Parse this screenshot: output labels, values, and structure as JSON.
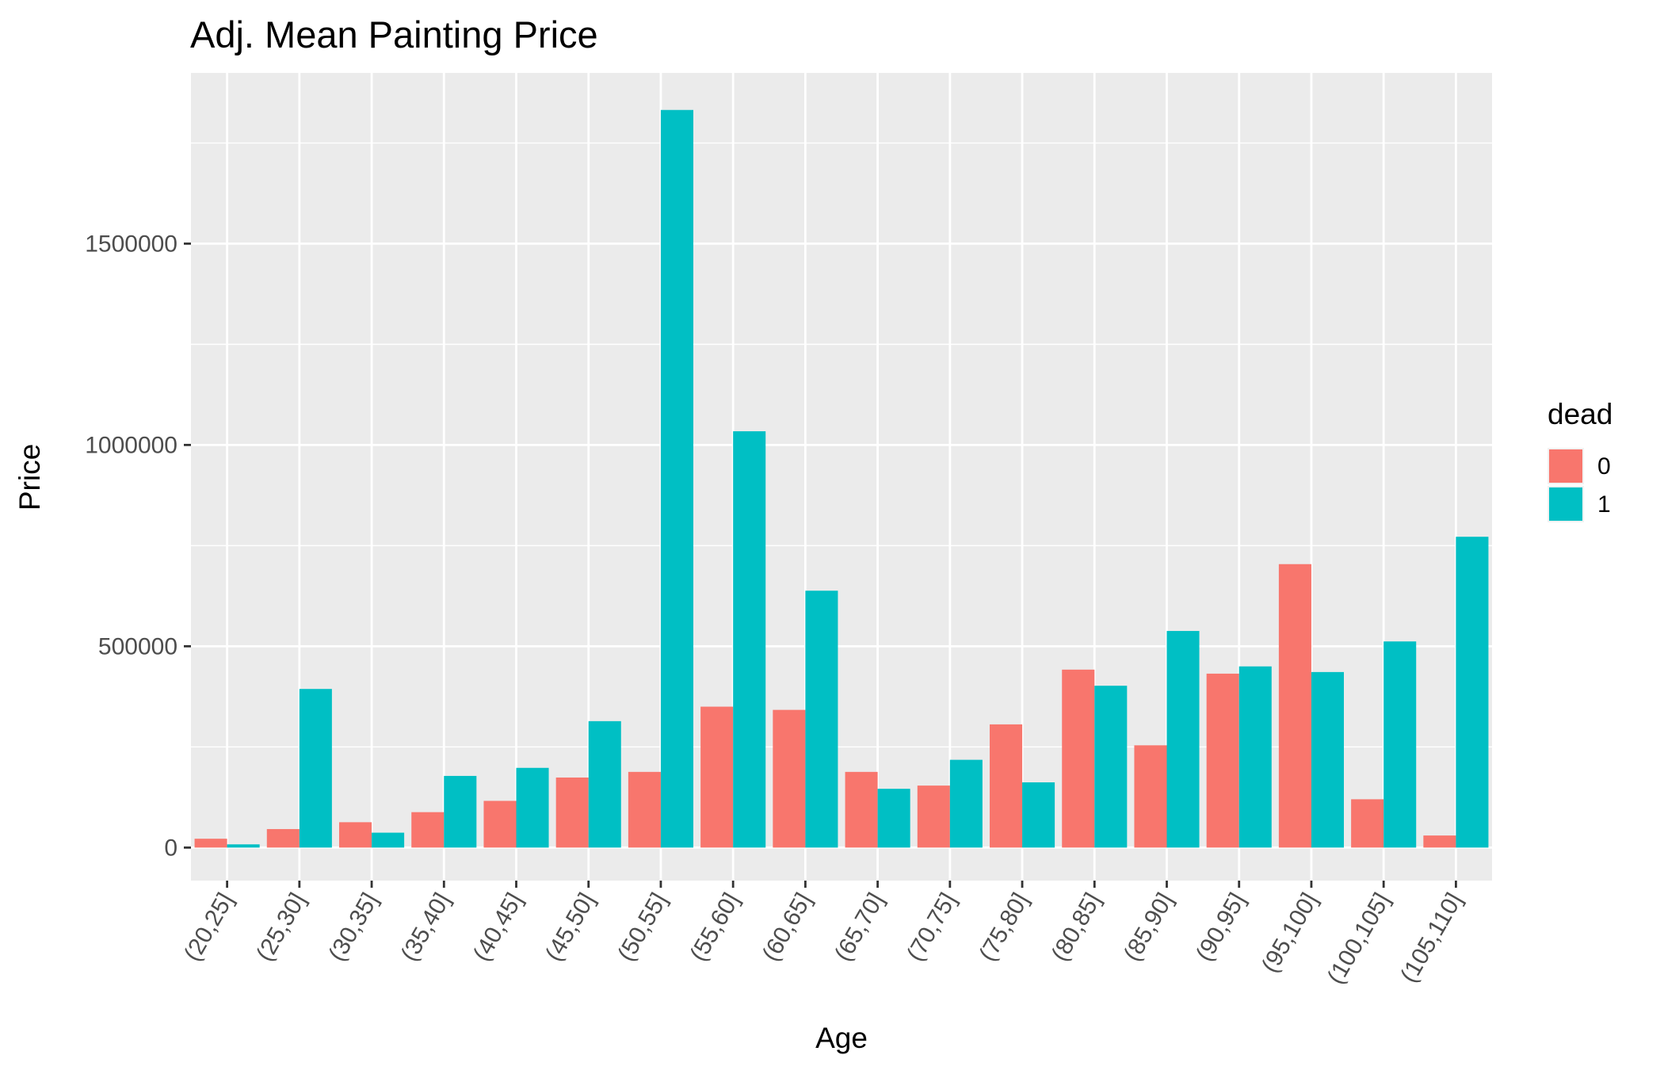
{
  "chart_data": {
    "type": "bar",
    "title": "Adj. Mean Painting Price",
    "xlabel": "Age",
    "ylabel": "Price",
    "categories": [
      "(20,25]",
      "(25,30]",
      "(30,35]",
      "(35,40]",
      "(40,45]",
      "(45,50]",
      "(50,55]",
      "(55,60]",
      "(60,65]",
      "(65,70]",
      "(70,75]",
      "(75,80]",
      "(80,85]",
      "(85,90]",
      "(90,95]",
      "(95,100]",
      "(100,105]",
      "(105,110]"
    ],
    "series": [
      {
        "name": "0",
        "color": "#F8766D",
        "values": [
          22000,
          46000,
          63000,
          88000,
          116000,
          174000,
          188000,
          350000,
          342000,
          188000,
          154000,
          306000,
          442000,
          254000,
          432000,
          704000,
          120000,
          30000
        ]
      },
      {
        "name": "1",
        "color": "#00BFC4",
        "values": [
          8000,
          394000,
          37000,
          178000,
          198000,
          314000,
          1832000,
          1034000,
          638000,
          146000,
          218000,
          162000,
          402000,
          538000,
          450000,
          436000,
          512000,
          772000
        ]
      }
    ],
    "yticks": [
      0,
      500000,
      1000000,
      1500000
    ],
    "ytick_labels": [
      "0",
      "500000",
      "1000000",
      "1500000"
    ],
    "ylim": [
      -82000,
      1924000
    ],
    "grid": true,
    "legend": {
      "title": "dead",
      "position": "right"
    },
    "panel_background": "#EBEBEB",
    "grid_color": "#FFFFFF"
  }
}
